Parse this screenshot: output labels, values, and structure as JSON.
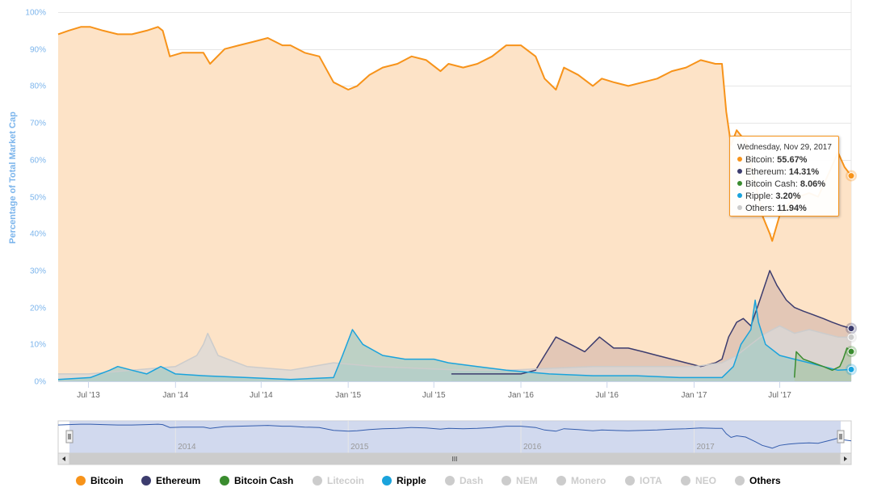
{
  "chart_data": {
    "type": "area",
    "title": "",
    "ylabel": "Percentage of Total Market Cap",
    "ylim": [
      0,
      100
    ],
    "y_ticks": [
      "0%",
      "10%",
      "20%",
      "30%",
      "40%",
      "50%",
      "60%",
      "70%",
      "80%",
      "90%",
      "100%"
    ],
    "x_ticks": [
      "Jul '13",
      "Jan '14",
      "Jul '14",
      "Jan '15",
      "Jul '15",
      "Jan '16",
      "Jul '16",
      "Jan '17",
      "Jul '17"
    ],
    "navigator_ticks": [
      "2014",
      "2015",
      "2016",
      "2017"
    ],
    "grid": true,
    "legend_position": "bottom",
    "series": [
      {
        "name": "Bitcoin",
        "color": "#f7931a",
        "fill": "#fde3c7",
        "x": [
          "2013-04-28",
          "2013-05-20",
          "2013-06-15",
          "2013-07-05",
          "2013-08-01",
          "2013-09-01",
          "2013-10-01",
          "2013-11-01",
          "2013-11-25",
          "2013-12-05",
          "2013-12-20",
          "2014-01-15",
          "2014-02-15",
          "2014-03-01",
          "2014-03-15",
          "2014-04-15",
          "2014-05-15",
          "2014-06-15",
          "2014-07-15",
          "2014-08-15",
          "2014-09-01",
          "2014-10-01",
          "2014-11-01",
          "2014-12-01",
          "2015-01-01",
          "2015-01-20",
          "2015-02-15",
          "2015-03-15",
          "2015-04-15",
          "2015-05-15",
          "2015-06-15",
          "2015-07-15",
          "2015-08-01",
          "2015-09-01",
          "2015-10-01",
          "2015-11-01",
          "2015-12-01",
          "2016-01-01",
          "2016-02-01",
          "2016-02-20",
          "2016-03-15",
          "2016-04-01",
          "2016-05-01",
          "2016-06-01",
          "2016-06-20",
          "2016-07-15",
          "2016-08-15",
          "2016-09-15",
          "2016-10-15",
          "2016-11-15",
          "2016-12-15",
          "2017-01-15",
          "2017-02-15",
          "2017-03-01",
          "2017-03-10",
          "2017-03-20",
          "2017-04-01",
          "2017-04-20",
          "2017-05-10",
          "2017-05-25",
          "2017-06-10",
          "2017-06-15",
          "2017-07-01",
          "2017-07-20",
          "2017-08-10",
          "2017-09-01",
          "2017-09-20",
          "2017-10-15",
          "2017-11-01",
          "2017-11-15",
          "2017-11-29"
        ],
        "values": [
          94,
          95,
          96,
          96,
          95,
          94,
          94,
          95,
          96,
          95,
          88,
          89,
          89,
          89,
          86,
          90,
          91,
          92,
          93,
          91,
          91,
          89,
          88,
          81,
          79,
          80,
          83,
          85,
          86,
          88,
          87,
          84,
          86,
          85,
          86,
          88,
          91,
          91,
          88,
          82,
          79,
          85,
          83,
          80,
          82,
          81,
          80,
          81,
          82,
          84,
          85,
          87,
          86,
          86,
          73,
          64,
          68,
          65,
          54,
          45,
          40,
          38,
          45,
          48,
          50,
          51,
          50,
          57,
          62,
          58,
          55.67
        ]
      },
      {
        "name": "Ethereum",
        "color": "#3c3c6e",
        "fill": "#d9bdb0",
        "x": [
          "2015-08-07",
          "2015-09-01",
          "2015-11-01",
          "2016-01-01",
          "2016-02-01",
          "2016-02-20",
          "2016-03-15",
          "2016-04-15",
          "2016-05-15",
          "2016-06-15",
          "2016-07-15",
          "2016-08-15",
          "2016-09-15",
          "2016-10-15",
          "2016-11-15",
          "2016-12-15",
          "2017-01-15",
          "2017-02-15",
          "2017-03-01",
          "2017-03-15",
          "2017-04-01",
          "2017-04-15",
          "2017-05-01",
          "2017-05-20",
          "2017-06-10",
          "2017-06-25",
          "2017-07-15",
          "2017-08-01",
          "2017-08-20",
          "2017-09-10",
          "2017-10-01",
          "2017-10-20",
          "2017-11-10",
          "2017-11-29"
        ],
        "values": [
          2,
          2,
          2,
          2,
          3,
          7,
          12,
          10,
          8,
          12,
          9,
          9,
          8,
          7,
          6,
          5,
          4,
          5,
          6,
          12,
          16,
          17,
          15,
          22,
          30,
          26,
          22,
          20,
          19,
          18,
          17,
          16,
          15,
          14.31
        ]
      },
      {
        "name": "Bitcoin Cash",
        "color": "#3a8c2f",
        "fill": "#b6c7ac",
        "x": [
          "2017-08-01",
          "2017-08-05",
          "2017-08-20",
          "2017-09-10",
          "2017-10-01",
          "2017-10-20",
          "2017-11-05",
          "2017-11-12",
          "2017-11-20",
          "2017-11-29"
        ],
        "values": [
          1,
          8,
          6,
          5,
          4,
          3,
          4,
          6,
          9,
          8.06
        ]
      },
      {
        "name": "Ripple",
        "color": "#1aa3dc",
        "fill": "#a7cbc4",
        "x": [
          "2013-04-28",
          "2013-07-05",
          "2013-08-15",
          "2013-09-01",
          "2013-10-01",
          "2013-11-01",
          "2013-12-01",
          "2014-01-01",
          "2014-03-01",
          "2014-06-01",
          "2014-09-01",
          "2014-12-01",
          "2014-12-20",
          "2015-01-10",
          "2015-02-01",
          "2015-03-15",
          "2015-05-01",
          "2015-07-01",
          "2015-08-01",
          "2015-10-01",
          "2015-12-01",
          "2016-03-01",
          "2016-06-01",
          "2016-09-01",
          "2016-12-01",
          "2017-03-01",
          "2017-03-25",
          "2017-04-10",
          "2017-05-01",
          "2017-05-10",
          "2017-05-17",
          "2017-06-01",
          "2017-07-01",
          "2017-08-01",
          "2017-09-01",
          "2017-10-01",
          "2017-11-01",
          "2017-11-29"
        ],
        "values": [
          0.5,
          1,
          3,
          4,
          3,
          2,
          4,
          2,
          1.5,
          1,
          0.5,
          1,
          7,
          14,
          10,
          7,
          6,
          6,
          5,
          4,
          3,
          2,
          1.5,
          1.5,
          1,
          1,
          4,
          10,
          14,
          22,
          16,
          10,
          7,
          6,
          5,
          4,
          3,
          3.2
        ]
      },
      {
        "name": "Others",
        "color": "#cccccc",
        "fill": "#d8d8d8",
        "x": [
          "2013-04-28",
          "2013-07-01",
          "2013-10-01",
          "2014-01-01",
          "2014-02-15",
          "2014-03-01",
          "2014-03-10",
          "2014-04-01",
          "2014-06-01",
          "2014-09-01",
          "2014-12-01",
          "2015-03-01",
          "2015-06-01",
          "2015-09-01",
          "2015-12-01",
          "2016-03-01",
          "2016-06-01",
          "2016-09-01",
          "2016-12-01",
          "2017-01-01",
          "2017-02-01",
          "2017-03-01",
          "2017-04-01",
          "2017-05-01",
          "2017-06-01",
          "2017-07-01",
          "2017-08-01",
          "2017-09-01",
          "2017-10-01",
          "2017-11-01",
          "2017-11-29"
        ],
        "values": [
          2,
          2,
          3,
          4,
          7,
          10,
          13,
          7,
          4,
          3,
          5,
          4,
          3.5,
          3,
          3,
          3.5,
          4,
          4,
          4,
          4,
          4.5,
          5,
          7,
          10,
          13,
          15,
          13,
          14,
          13,
          12,
          11.94
        ]
      }
    ],
    "legend": [
      {
        "name": "Bitcoin",
        "color": "#f7931a",
        "visible": true
      },
      {
        "name": "Ethereum",
        "color": "#3c3c6e",
        "visible": true
      },
      {
        "name": "Bitcoin Cash",
        "color": "#3a8c2f",
        "visible": true
      },
      {
        "name": "Litecoin",
        "color": "#cccccc",
        "visible": false
      },
      {
        "name": "Ripple",
        "color": "#1aa3dc",
        "visible": true
      },
      {
        "name": "Dash",
        "color": "#cccccc",
        "visible": false
      },
      {
        "name": "NEM",
        "color": "#cccccc",
        "visible": false
      },
      {
        "name": "Monero",
        "color": "#cccccc",
        "visible": false
      },
      {
        "name": "IOTA",
        "color": "#cccccc",
        "visible": false
      },
      {
        "name": "NEO",
        "color": "#cccccc",
        "visible": false
      },
      {
        "name": "Others",
        "color": "#cccccc",
        "visible": true
      }
    ],
    "tooltip": {
      "date": "Wednesday, Nov 29, 2017",
      "rows": [
        {
          "name": "Bitcoin",
          "value": "55.67%",
          "color": "#f7931a"
        },
        {
          "name": "Ethereum",
          "value": "14.31%",
          "color": "#3c3c6e"
        },
        {
          "name": "Bitcoin Cash",
          "value": "8.06%",
          "color": "#3a8c2f"
        },
        {
          "name": "Ripple",
          "value": "3.20%",
          "color": "#1aa3dc"
        },
        {
          "name": "Others",
          "value": "11.94%",
          "color": "#cccccc"
        }
      ]
    }
  },
  "navigator": {
    "scroll_grip": "III"
  }
}
